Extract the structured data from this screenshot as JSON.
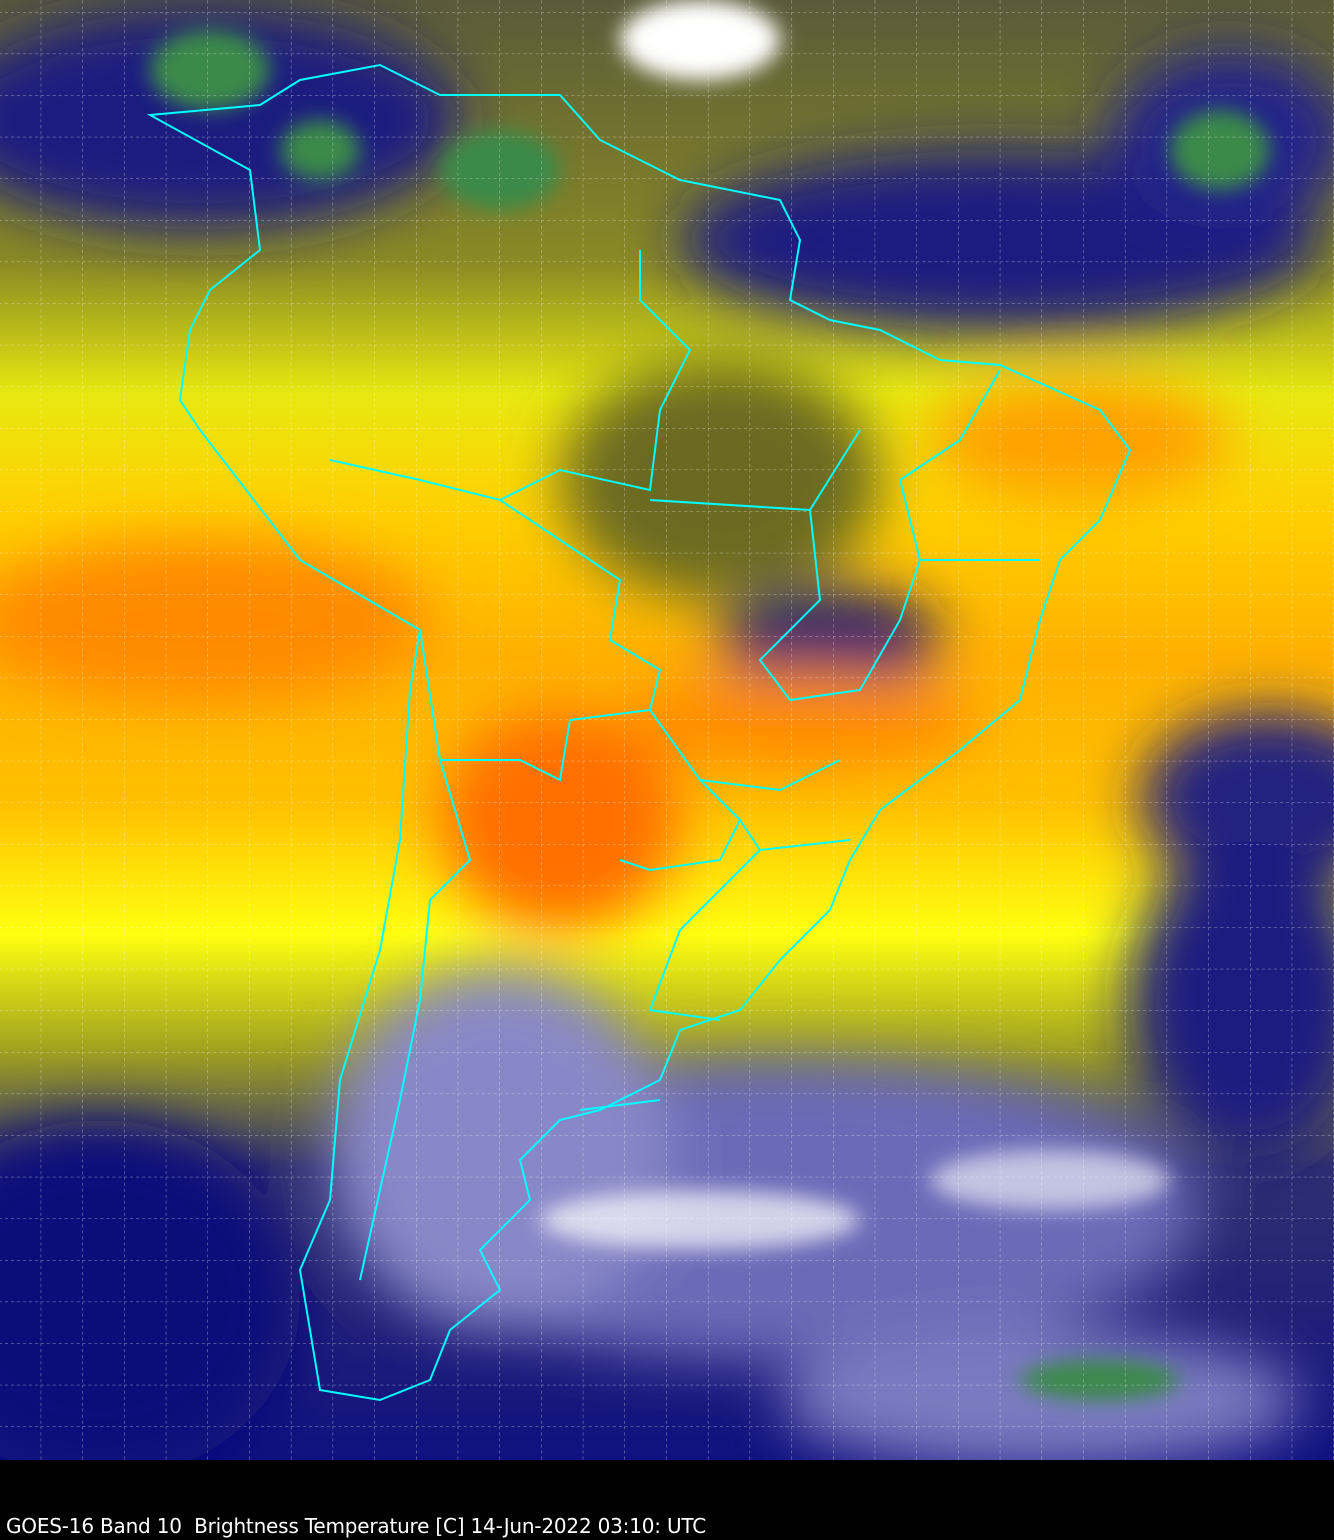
{
  "caption": "GOES-16 Band 10  Brightness Temperature [C] 14-Jun-2022 03:10: UTC",
  "colors": {
    "cold_clouds": "#ffffff",
    "very_cold_tops": "#3a8a4a",
    "dry_warm": "#ff8c00",
    "mid": "#ffff00",
    "moist": "#1a1a7a",
    "olive": "#8a8a20",
    "boundaries": "#00ffff",
    "grid": "#ffffff",
    "background": "#000000"
  },
  "icons": {
    "map_overlay": "country-state-boundaries",
    "grid": "lat-lon-graticule"
  }
}
